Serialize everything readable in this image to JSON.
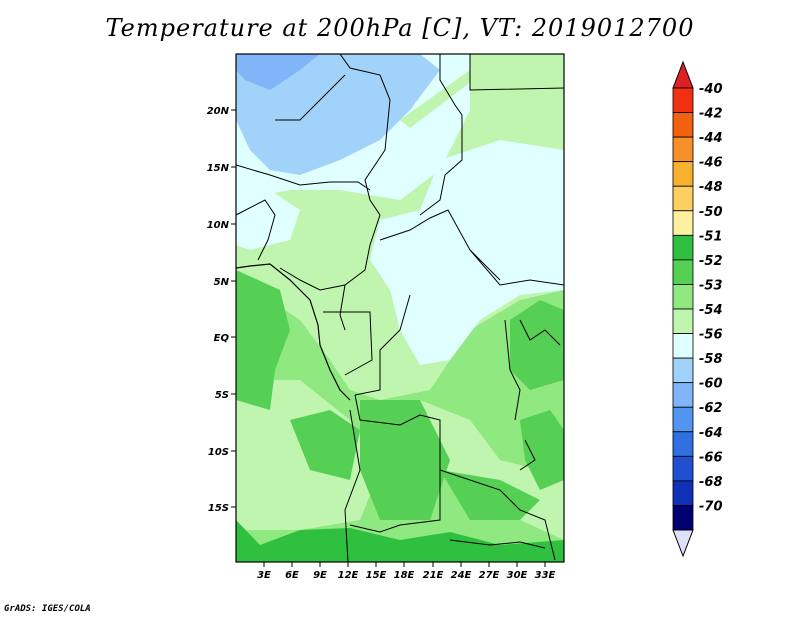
{
  "title": "Temperature at 200hPa [C], VT: 2019012700",
  "credit": "GrADS: IGES/COLA",
  "map": {
    "lat_labels": [
      "20N",
      "15N",
      "10N",
      "5N",
      "EQ",
      "5S",
      "10S",
      "15S"
    ],
    "lon_labels": [
      "3E",
      "6E",
      "9E",
      "12E",
      "15E",
      "18E",
      "21E",
      "24E",
      "27E",
      "30E",
      "33E"
    ]
  },
  "colorbar": {
    "labels": [
      "-40",
      "-42",
      "-44",
      "-46",
      "-48",
      "-50",
      "-51",
      "-52",
      "-53",
      "-54",
      "-56",
      "-58",
      "-60",
      "-62",
      "-64",
      "-66",
      "-68",
      "-70"
    ],
    "colors": [
      "#f03010",
      "#f26010",
      "#f6902a",
      "#f8b030",
      "#fbd060",
      "#fef0a0",
      "#30c040",
      "#55d055",
      "#90e880",
      "#c0f5b0",
      "#e0ffff",
      "#a0d2fa",
      "#80b6f8",
      "#5096f0",
      "#3070e0",
      "#2050d0",
      "#1030b8",
      "#000070"
    ],
    "top_arrow_color": "#e02020",
    "bottom_arrow_color": "#e0e0f8"
  }
}
